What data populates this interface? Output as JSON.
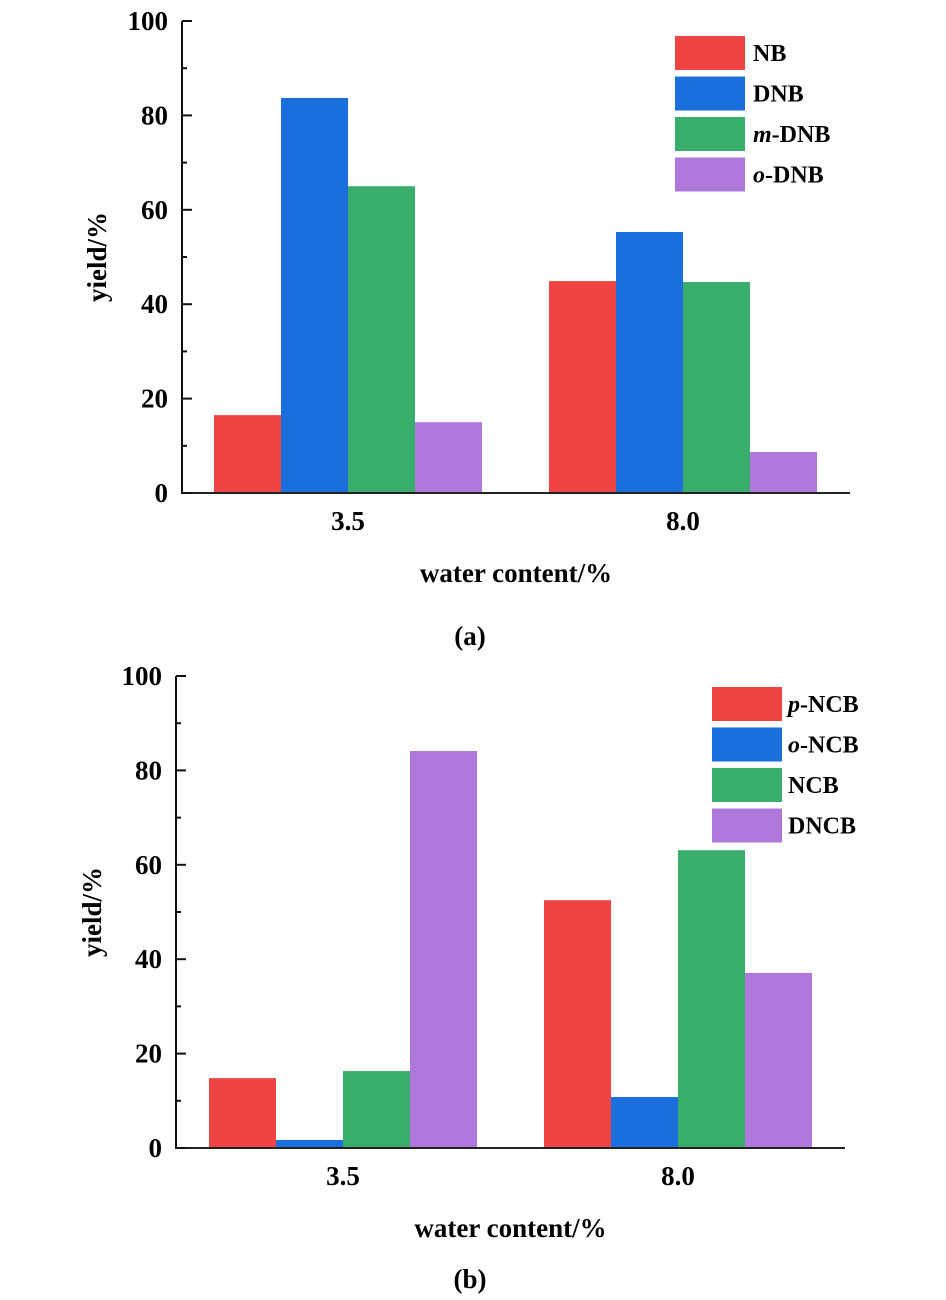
{
  "chart_data": [
    {
      "type": "bar",
      "panel_label": "(a)",
      "title": "",
      "xlabel": "water content/%",
      "ylabel": "yield/%",
      "categories": [
        "3.5",
        "8.0"
      ],
      "ylim": [
        0,
        100
      ],
      "yticks": [
        0,
        20,
        40,
        60,
        80,
        100
      ],
      "yticks_labels": [
        "0",
        "20",
        "40",
        "60",
        "80",
        "100"
      ],
      "minor_ticks": true,
      "grid": false,
      "legend_position": "top-right",
      "series": [
        {
          "name": "NB",
          "name_prefix": "",
          "name_main": "NB",
          "color": "#ef4444",
          "values": [
            16.5,
            44.9
          ]
        },
        {
          "name": "DNB",
          "name_prefix": "",
          "name_main": "DNB",
          "color": "#1a6fdc",
          "values": [
            83.7,
            55.3
          ]
        },
        {
          "name": "m-DNB",
          "name_prefix": "m",
          "name_main": "-DNB",
          "color": "#38ad6c",
          "values": [
            65.0,
            44.7
          ]
        },
        {
          "name": "o-DNB",
          "name_prefix": "o",
          "name_main": "-DNB",
          "color": "#b077dd",
          "values": [
            15.0,
            8.7
          ]
        }
      ]
    },
    {
      "type": "bar",
      "panel_label": "(b)",
      "title": "",
      "xlabel": "water content/%",
      "ylabel": "yield/%",
      "categories": [
        "3.5",
        "8.0"
      ],
      "ylim": [
        0,
        100
      ],
      "yticks": [
        0,
        20,
        40,
        60,
        80,
        100
      ],
      "yticks_labels": [
        "0",
        "20",
        "40",
        "60",
        "80",
        "100"
      ],
      "minor_ticks": true,
      "grid": false,
      "legend_position": "top-right",
      "series": [
        {
          "name": "p-NCB",
          "name_prefix": "p",
          "name_main": "-NCB",
          "color": "#ef4444",
          "values": [
            14.8,
            52.5
          ]
        },
        {
          "name": "o-NCB",
          "name_prefix": "o",
          "name_main": "-NCB",
          "color": "#1a6fdc",
          "values": [
            1.7,
            10.8
          ]
        },
        {
          "name": "NCB",
          "name_prefix": "",
          "name_main": "NCB",
          "color": "#38ad6c",
          "values": [
            16.3,
            63.1
          ]
        },
        {
          "name": "DNCB",
          "name_prefix": "",
          "name_main": "DNCB",
          "color": "#b077dd",
          "values": [
            84.1,
            37.1
          ]
        }
      ]
    }
  ]
}
